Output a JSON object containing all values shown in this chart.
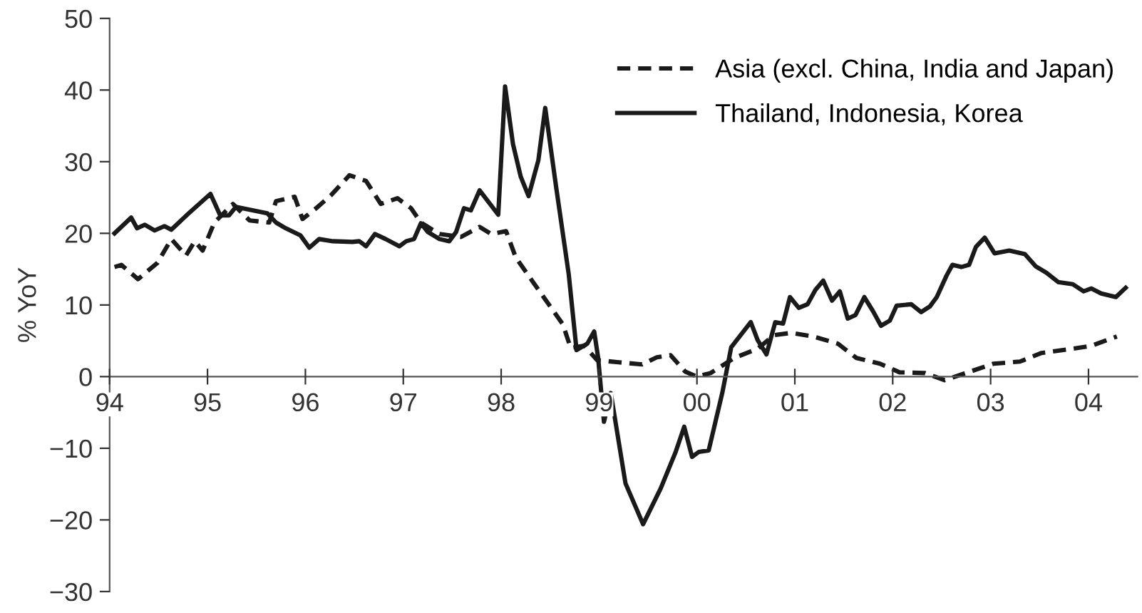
{
  "chart_data": {
    "type": "line",
    "ylabel": "% YoY",
    "xlim": [
      1994,
      2004.5
    ],
    "ylim": [
      -30,
      50
    ],
    "xticks": [
      {
        "value": 1994,
        "label": "94"
      },
      {
        "value": 1995,
        "label": "95"
      },
      {
        "value": 1996,
        "label": "96"
      },
      {
        "value": 1997,
        "label": "97"
      },
      {
        "value": 1998,
        "label": "98"
      },
      {
        "value": 1999,
        "label": "99"
      },
      {
        "value": 2000,
        "label": "00"
      },
      {
        "value": 2001,
        "label": "01"
      },
      {
        "value": 2002,
        "label": "02"
      },
      {
        "value": 2003,
        "label": "03"
      },
      {
        "value": 2004,
        "label": "04"
      }
    ],
    "yticks": [
      {
        "value": -30,
        "label": "−30"
      },
      {
        "value": -20,
        "label": "−20"
      },
      {
        "value": -10,
        "label": "−10"
      },
      0,
      10,
      20,
      30,
      40,
      50
    ],
    "grid": false,
    "legend": "top right",
    "marker": "none",
    "series": [
      {
        "name": "Asia (excl. China, India and Japan)",
        "color": "#1a1a1a",
        "line_style": "dashed",
        "x": [
          1994.05,
          1994.12,
          1994.29,
          1994.49,
          1994.63,
          1994.78,
          1994.87,
          1994.95,
          1995.07,
          1995.26,
          1995.43,
          1995.63,
          1995.7,
          1995.89,
          1995.97,
          1996.11,
          1996.26,
          1996.45,
          1996.62,
          1996.77,
          1996.94,
          1997.08,
          1997.18,
          1997.37,
          1997.59,
          1997.78,
          1997.9,
          1998.05,
          1998.15,
          1998.32,
          1998.49,
          1998.63,
          1998.71,
          1998.85,
          1998.98,
          1999.2,
          1999.44,
          1999.59,
          1999.73,
          1999.88,
          2000.0,
          2000.14,
          2000.38,
          2000.62,
          2000.79,
          2000.96,
          2001.19,
          2001.44,
          2001.63,
          2001.87,
          2002.07,
          2002.33,
          2002.53,
          2002.79,
          2003.03,
          2003.3,
          2003.52,
          2003.79,
          2004.03,
          2004.29
        ],
        "values": [
          15.3,
          15.6,
          13.6,
          15.9,
          19.2,
          16.9,
          18.9,
          17.6,
          21.5,
          24.1,
          21.8,
          21.5,
          24.5,
          25.1,
          22.0,
          23.5,
          25.3,
          28.1,
          27.3,
          24.1,
          24.9,
          23.5,
          21.5,
          19.9,
          19.5,
          20.9,
          19.9,
          20.3,
          16.6,
          13.3,
          10.0,
          7.3,
          4.0,
          4.3,
          2.3,
          2.0,
          1.7,
          2.7,
          3.0,
          0.7,
          0.0,
          0.5,
          2.6,
          3.9,
          5.8,
          6.1,
          5.6,
          4.6,
          2.6,
          1.8,
          0.6,
          0.5,
          -0.5,
          0.7,
          1.8,
          2.1,
          3.3,
          3.8,
          4.3,
          5.6
        ]
      },
      {
        "name": "Thailand, Indonesia, Korea",
        "color": "#1a1a1a",
        "line_style": "solid",
        "x": [
          1994.05,
          1994.22,
          1994.28,
          1994.36,
          1994.46,
          1994.56,
          1994.63,
          1994.8,
          1995.03,
          1995.13,
          1995.22,
          1995.29,
          1995.61,
          1995.7,
          1995.8,
          1995.95,
          1996.04,
          1996.14,
          1996.28,
          1996.48,
          1996.55,
          1996.62,
          1996.71,
          1996.82,
          1996.96,
          1997.03,
          1997.11,
          1997.18,
          1997.25,
          1997.37,
          1997.47,
          1997.54,
          1997.62,
          1997.69,
          1997.78,
          1997.97,
          1998.04,
          1998.12,
          1998.2,
          1998.28,
          1998.38,
          1998.45,
          1998.56,
          1998.69,
          1998.77,
          1998.88,
          1998.95,
          1998.99,
          1999.05,
          1999.12,
          1999.27,
          1999.45,
          1999.63,
          1999.78,
          1999.87,
          1999.95,
          2000.02,
          2000.12,
          2000.26,
          2000.35,
          2000.55,
          2000.62,
          2000.71,
          2000.8,
          2000.88,
          2000.95,
          2001.04,
          2001.13,
          2001.21,
          2001.29,
          2001.38,
          2001.46,
          2001.54,
          2001.62,
          2001.71,
          2001.8,
          2001.88,
          2001.97,
          2002.04,
          2002.19,
          2002.29,
          2002.38,
          2002.45,
          2002.55,
          2002.61,
          2002.7,
          2002.78,
          2002.85,
          2002.94,
          2003.04,
          2003.19,
          2003.35,
          2003.46,
          2003.57,
          2003.69,
          2003.84,
          2003.95,
          2004.03,
          2004.13,
          2004.28,
          2004.38
        ],
        "values": [
          20.0,
          22.2,
          20.7,
          21.2,
          20.4,
          21.0,
          20.5,
          22.7,
          25.5,
          22.5,
          22.5,
          23.7,
          22.8,
          21.5,
          20.7,
          19.7,
          18.0,
          19.2,
          18.9,
          18.8,
          18.9,
          18.2,
          19.9,
          19.2,
          18.2,
          18.9,
          19.2,
          21.4,
          20.2,
          19.2,
          18.9,
          20.2,
          23.5,
          23.2,
          26.0,
          22.6,
          40.5,
          32.5,
          27.9,
          25.2,
          30.2,
          37.5,
          26.6,
          14.3,
          3.7,
          4.6,
          6.3,
          2.7,
          -6.3,
          -2.3,
          -14.9,
          -20.6,
          -15.6,
          -10.6,
          -7.0,
          -11.2,
          -10.5,
          -10.3,
          -2.2,
          4.1,
          7.6,
          5.1,
          3.1,
          7.6,
          7.4,
          11.1,
          9.6,
          10.1,
          12.1,
          13.4,
          10.6,
          11.9,
          8.1,
          8.6,
          11.1,
          9.1,
          7.1,
          7.8,
          9.9,
          10.1,
          9.0,
          9.8,
          11.1,
          14.1,
          15.6,
          15.3,
          15.6,
          18.1,
          19.4,
          17.2,
          17.6,
          17.1,
          15.4,
          14.5,
          13.2,
          12.9,
          11.9,
          12.3,
          11.6,
          11.1,
          12.4
        ]
      }
    ]
  }
}
